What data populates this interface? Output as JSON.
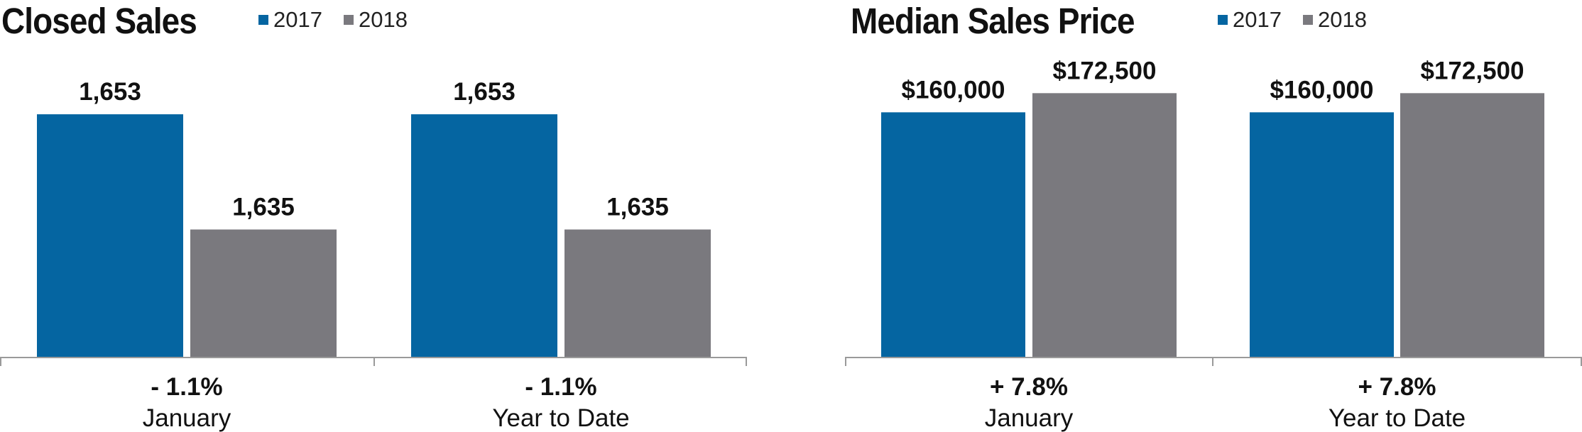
{
  "colors": {
    "y2017": "#0565a1",
    "y2018": "#7a797e",
    "axis": "#9a9a9a"
  },
  "legend": [
    {
      "label": "2017",
      "color": "#0565a1"
    },
    {
      "label": "2018",
      "color": "#7a797e"
    }
  ],
  "chart_data": [
    {
      "type": "bar",
      "title": "Closed Sales",
      "categories": [
        "January",
        "Year to Date"
      ],
      "changes": [
        "- 1.1%",
        "- 1.1%"
      ],
      "series": [
        {
          "name": "2017",
          "values": [
            1653,
            1653
          ],
          "labels": [
            "1,653",
            "1,653"
          ]
        },
        {
          "name": "2018",
          "values": [
            1635,
            1635
          ],
          "labels": [
            "1,635",
            "1,635"
          ]
        }
      ],
      "ylim": [
        1615,
        1657
      ],
      "grid": false,
      "legend_position": "top"
    },
    {
      "type": "bar",
      "title": "Median Sales Price",
      "categories": [
        "January",
        "Year to Date"
      ],
      "changes": [
        "+ 7.8%",
        "+ 7.8%"
      ],
      "series": [
        {
          "name": "2017",
          "values": [
            160000,
            160000
          ],
          "labels": [
            "$160,000",
            "$160,000"
          ]
        },
        {
          "name": "2018",
          "values": [
            172500,
            172500
          ],
          "labels": [
            "$172,500",
            "$172,500"
          ]
        }
      ],
      "ylim": [
        0,
        187000
      ],
      "grid": false,
      "legend_position": "top"
    }
  ]
}
